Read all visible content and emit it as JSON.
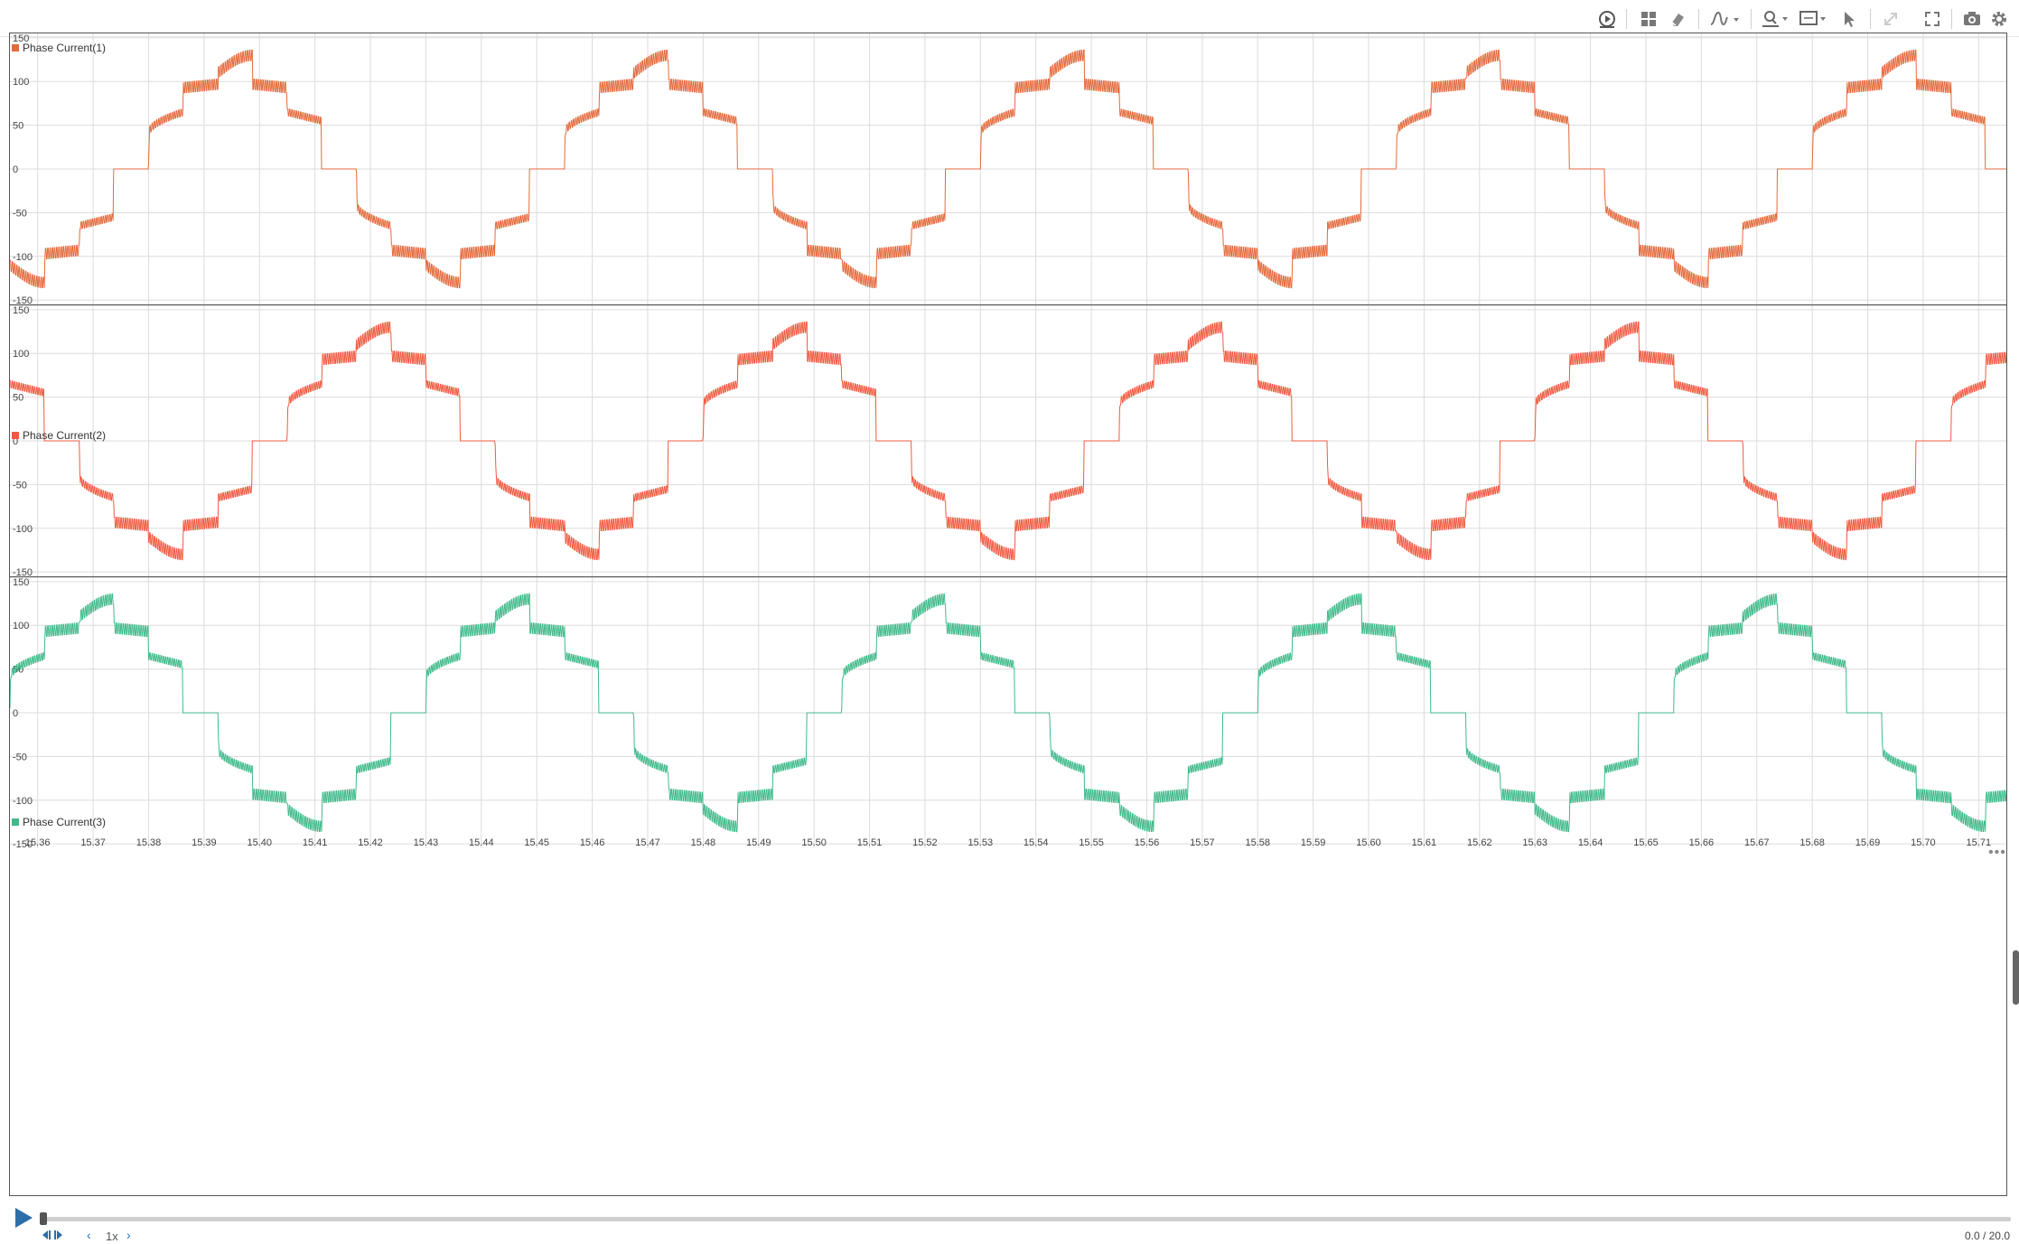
{
  "toolbar": {
    "buttons": [
      {
        "name": "playback-icon"
      },
      {
        "name": "layout-grid-icon"
      },
      {
        "name": "eraser-icon"
      },
      {
        "name": "signal-style-icon"
      },
      {
        "name": "zoom-icon"
      },
      {
        "name": "fit-view-icon"
      },
      {
        "name": "cursor-icon"
      },
      {
        "name": "expand-icon"
      },
      {
        "name": "fullscreen-icon"
      },
      {
        "name": "camera-icon"
      },
      {
        "name": "settings-icon"
      }
    ]
  },
  "chart_data": [
    {
      "type": "line",
      "series": [
        {
          "name": "Phase Current(1)",
          "color": "#e46a3c",
          "phase_start_deg": -90
        }
      ],
      "ylim": [
        -155,
        155
      ],
      "yticks": [
        -150,
        -100,
        -50,
        0,
        50,
        100,
        150
      ],
      "ytick_labels": [
        "-150",
        "-100",
        "-50",
        "0",
        "50",
        "100",
        "150"
      ],
      "xlim": [
        15.355,
        15.715
      ],
      "period_s": 0.075,
      "grid": true,
      "legend": "top-left"
    },
    {
      "type": "line",
      "series": [
        {
          "name": "Phase Current(2)",
          "color": "#f05a40",
          "phase_start_deg": 150
        }
      ],
      "ylim": [
        -155,
        155
      ],
      "yticks": [
        -150,
        -100,
        -50,
        0,
        50,
        100,
        150
      ],
      "ytick_labels": [
        "-150",
        "-100",
        "-50",
        "0",
        "50",
        "100",
        "150"
      ],
      "xlim": [
        15.355,
        15.715
      ],
      "period_s": 0.075,
      "grid": true,
      "legend": "top-left"
    },
    {
      "type": "line",
      "series": [
        {
          "name": "Phase Current(3)",
          "color": "#3fba8a",
          "phase_start_deg": 30
        }
      ],
      "ylim": [
        -155,
        155
      ],
      "yticks": [
        -150,
        -100,
        -50,
        0,
        50,
        100,
        150
      ],
      "ytick_labels": [
        "-150",
        "-100",
        "-50",
        "0",
        "50",
        "100",
        "150"
      ],
      "xlim": [
        15.355,
        15.715
      ],
      "period_s": 0.075,
      "grid": true,
      "legend": "top-left",
      "xticks": [
        "15.36",
        "15.37",
        "15.38",
        "15.39",
        "15.40",
        "15.41",
        "15.42",
        "15.43",
        "15.44",
        "15.45",
        "15.46",
        "15.47",
        "15.48",
        "15.49",
        "15.50",
        "15.51",
        "15.52",
        "15.53",
        "15.54",
        "15.55",
        "15.56",
        "15.57",
        "15.58",
        "15.59",
        "15.60",
        "15.61",
        "15.62",
        "15.63",
        "15.64",
        "15.65",
        "15.66",
        "15.67",
        "15.68",
        "15.69",
        "15.70",
        "15.71"
      ]
    }
  ],
  "playback": {
    "speed": "1x",
    "time_readout": "0.0 / 20.0",
    "progress": 0.0
  },
  "more_menu": "•••"
}
